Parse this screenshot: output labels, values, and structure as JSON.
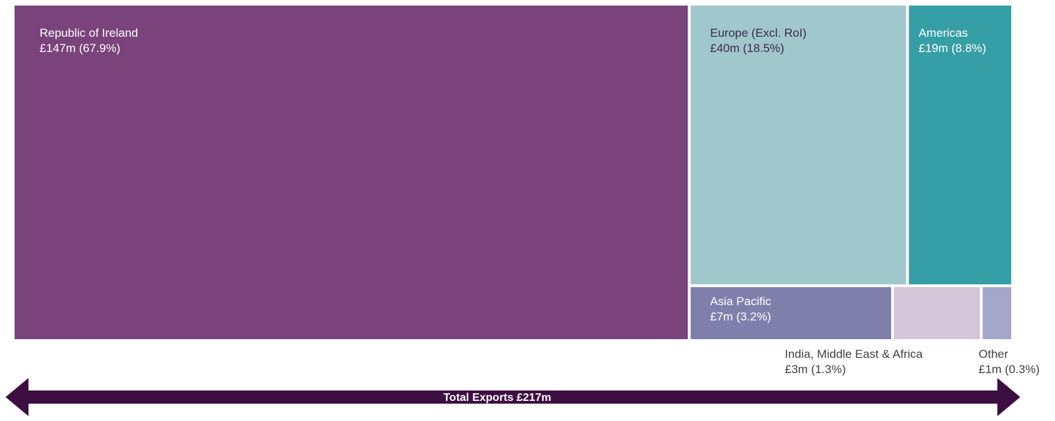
{
  "chart_data": {
    "type": "treemap",
    "title": "",
    "unit": "£m",
    "total": {
      "label": "Total Exports £217m",
      "value": 217
    },
    "items": [
      {
        "name": "Republic of Ireland",
        "value": 147,
        "share": 67.9,
        "value_label": "£147m (67.9%)",
        "color": "#7a437b"
      },
      {
        "name": "Europe (Excl. RoI)",
        "value": 40,
        "share": 18.5,
        "value_label": "£40m (18.5%)",
        "color": "#a0c8cc"
      },
      {
        "name": "Americas",
        "value": 19,
        "share": 8.8,
        "value_label": "£19m (8.8%)",
        "color": "#369fa5"
      },
      {
        "name": "Asia Pacific",
        "value": 7,
        "share": 3.2,
        "value_label": "£7m (3.2%)",
        "color": "#7e80ab"
      },
      {
        "name": "India, Middle East & Africa",
        "value": 3,
        "share": 1.3,
        "value_label": "£3m (1.3%)",
        "color": "#d4c5d9"
      },
      {
        "name": "Other",
        "value": 1,
        "share": 0.3,
        "value_label": "£1m (0.3%)",
        "color": "#a6a8c9"
      }
    ],
    "arrow_color": "#3c0e41"
  }
}
